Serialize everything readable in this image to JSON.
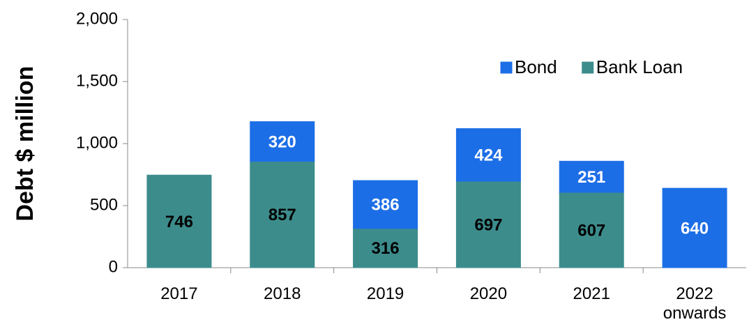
{
  "chart_data": {
    "type": "stacked_bar",
    "y_label": "Debt $ million",
    "categories": [
      "2017",
      "2018",
      "2019",
      "2020",
      "2021",
      "2022 onwards"
    ],
    "series": [
      {
        "name": "Bank Loan",
        "color": "#3d8c8c",
        "values": [
          746,
          857,
          316,
          697,
          607,
          null
        ]
      },
      {
        "name": "Bond",
        "color": "#1c6ee6",
        "values": [
          null,
          320,
          386,
          424,
          251,
          640
        ]
      }
    ],
    "ylim": [
      0,
      2000
    ],
    "yticks": [
      0,
      {
        "value": 500,
        "label": "500"
      },
      {
        "value": 1000,
        "label": "1,000"
      },
      {
        "value": 1500,
        "label": "1,500"
      },
      {
        "value": 2000,
        "label": "2,000"
      }
    ],
    "legend": "top-right"
  }
}
